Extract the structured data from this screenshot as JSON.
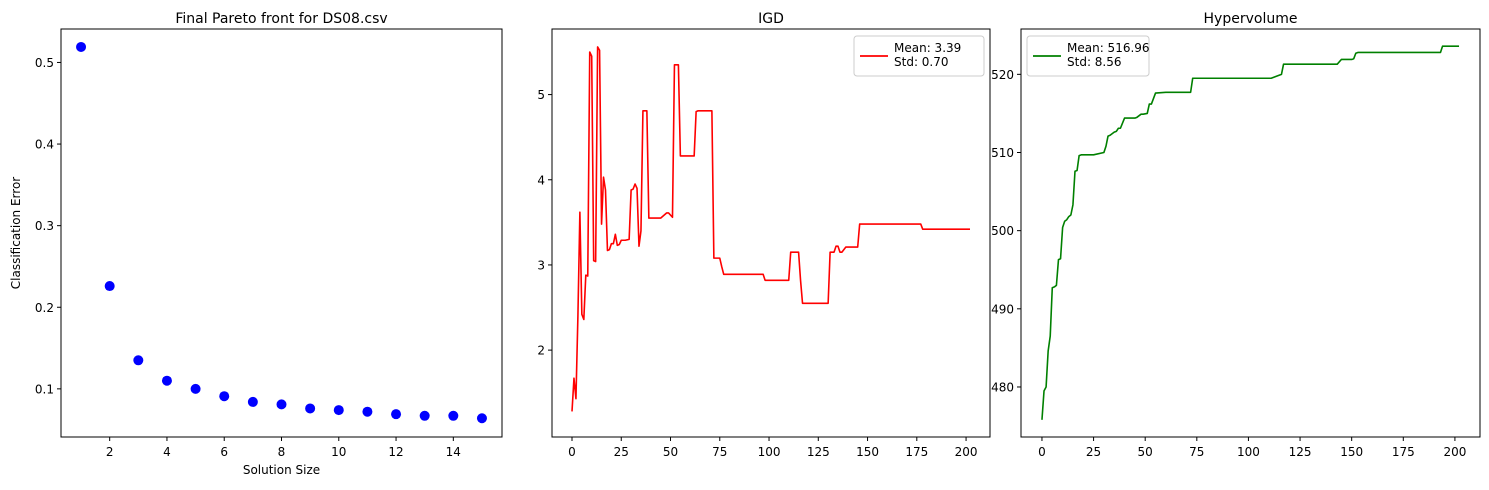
{
  "chart_data": [
    {
      "type": "scatter",
      "title": "Final Pareto front for DS08.csv",
      "xlabel": "Solution Size",
      "ylabel": "Classification Error",
      "xlim": [
        0.3,
        15.7
      ],
      "ylim": [
        0.041,
        0.541
      ],
      "xticks": [
        2,
        4,
        6,
        8,
        10,
        12,
        14
      ],
      "yticks": [
        0.1,
        0.2,
        0.3,
        0.4,
        0.5
      ],
      "grid": false,
      "series": [
        {
          "color": "#0000ff",
          "x": [
            1,
            2,
            3,
            4,
            5,
            6,
            7,
            8,
            9,
            10,
            11,
            12,
            13,
            14,
            15
          ],
          "y": [
            0.519,
            0.226,
            0.135,
            0.11,
            0.1,
            0.091,
            0.084,
            0.081,
            0.076,
            0.074,
            0.072,
            0.069,
            0.067,
            0.067,
            0.064
          ]
        }
      ]
    },
    {
      "type": "line",
      "title": "IGD",
      "xlabel": "",
      "ylabel": "",
      "xlim": [
        -10.15,
        212.15
      ],
      "ylim": [
        0.98,
        5.77
      ],
      "xticks": [
        0,
        25,
        50,
        75,
        100,
        125,
        150,
        175,
        200
      ],
      "yticks": [
        2,
        3,
        4,
        5
      ],
      "grid": false,
      "legend": "upper right",
      "series": [
        {
          "name": "Mean: 3.39\nStd: 0.70",
          "color": "#ff0000",
          "x": [
            0,
            1,
            2,
            3,
            4,
            5,
            6,
            7,
            8,
            9,
            10,
            11,
            12,
            13,
            14,
            15,
            16,
            17,
            18,
            19,
            20,
            21,
            22,
            23,
            24,
            25,
            27,
            29,
            30,
            31,
            32,
            33,
            34,
            35,
            36,
            37,
            38,
            39,
            40,
            42,
            45,
            48,
            49,
            51,
            52,
            53,
            54,
            55,
            56,
            60,
            61,
            62,
            63,
            64,
            65,
            70,
            71,
            72,
            73,
            74,
            75,
            76,
            77,
            78,
            80,
            85,
            90,
            95,
            97,
            98,
            100,
            105,
            110,
            111,
            115,
            116,
            117,
            120,
            125,
            130,
            131,
            133,
            134,
            135,
            136,
            137,
            139,
            140,
            145,
            146,
            150,
            160,
            170,
            177,
            178,
            180,
            190,
            202
          ],
          "y": [
            1.28,
            1.67,
            1.43,
            2.4,
            3.62,
            2.42,
            2.36,
            2.88,
            2.87,
            5.5,
            5.45,
            3.05,
            3.04,
            5.56,
            5.52,
            3.48,
            4.03,
            3.88,
            3.17,
            3.18,
            3.25,
            3.25,
            3.36,
            3.23,
            3.24,
            3.29,
            3.29,
            3.3,
            3.88,
            3.89,
            3.95,
            3.9,
            3.22,
            3.4,
            4.81,
            4.81,
            4.81,
            3.55,
            3.55,
            3.55,
            3.55,
            3.61,
            3.61,
            3.56,
            5.35,
            5.35,
            5.35,
            4.28,
            4.28,
            4.28,
            4.28,
            4.28,
            4.8,
            4.81,
            4.81,
            4.81,
            4.81,
            3.08,
            3.08,
            3.08,
            3.08,
            2.98,
            2.89,
            2.89,
            2.89,
            2.89,
            2.89,
            2.89,
            2.89,
            2.82,
            2.82,
            2.82,
            2.82,
            3.15,
            3.15,
            2.82,
            2.55,
            2.55,
            2.55,
            2.55,
            3.15,
            3.15,
            3.22,
            3.22,
            3.15,
            3.15,
            3.21,
            3.21,
            3.21,
            3.48,
            3.48,
            3.48,
            3.48,
            3.48,
            3.42,
            3.42,
            3.42,
            3.42
          ]
        }
      ]
    },
    {
      "type": "line",
      "title": "Hypervolume",
      "xlabel": "",
      "ylabel": "",
      "xlim": [
        -10.15,
        212.15
      ],
      "ylim": [
        473.6,
        525.8
      ],
      "xticks": [
        0,
        25,
        50,
        75,
        100,
        125,
        150,
        175,
        200
      ],
      "yticks": [
        480,
        490,
        500,
        510,
        520
      ],
      "grid": false,
      "legend": "upper left",
      "series": [
        {
          "name": "Mean: 516.96\nStd: 8.56",
          "color": "#008000",
          "x": [
            0,
            1,
            2,
            3,
            4,
            5,
            6,
            7,
            8,
            9,
            10,
            11,
            12,
            13,
            14,
            15,
            16,
            17,
            18,
            19,
            20,
            25,
            30,
            31,
            32,
            33,
            35,
            36,
            37,
            38,
            40,
            45,
            46,
            48,
            49,
            51,
            52,
            53,
            54,
            55,
            60,
            70,
            72,
            73,
            75,
            80,
            90,
            100,
            110,
            111,
            115,
            116,
            117,
            120,
            130,
            140,
            143,
            145,
            150,
            151,
            152,
            153,
            160,
            170,
            180,
            190,
            193,
            194,
            200,
            202
          ],
          "y": [
            475.8,
            479.5,
            480.0,
            484.6,
            486.5,
            492.7,
            492.8,
            493.0,
            496.3,
            496.4,
            500.4,
            501.2,
            501.4,
            501.8,
            502.0,
            503.3,
            507.6,
            507.7,
            509.6,
            509.7,
            509.7,
            509.7,
            510.0,
            510.8,
            512.1,
            512.2,
            512.6,
            512.7,
            513.1,
            513.1,
            514.4,
            514.4,
            514.5,
            514.9,
            514.9,
            515.0,
            516.2,
            516.2,
            516.9,
            517.6,
            517.7,
            517.7,
            517.7,
            519.5,
            519.5,
            519.5,
            519.5,
            519.5,
            519.5,
            519.5,
            519.9,
            520.0,
            521.3,
            521.3,
            521.3,
            521.3,
            521.3,
            521.9,
            521.9,
            522.0,
            522.7,
            522.8,
            522.8,
            522.8,
            522.8,
            522.8,
            522.8,
            523.6,
            523.6,
            523.6
          ]
        }
      ]
    }
  ]
}
